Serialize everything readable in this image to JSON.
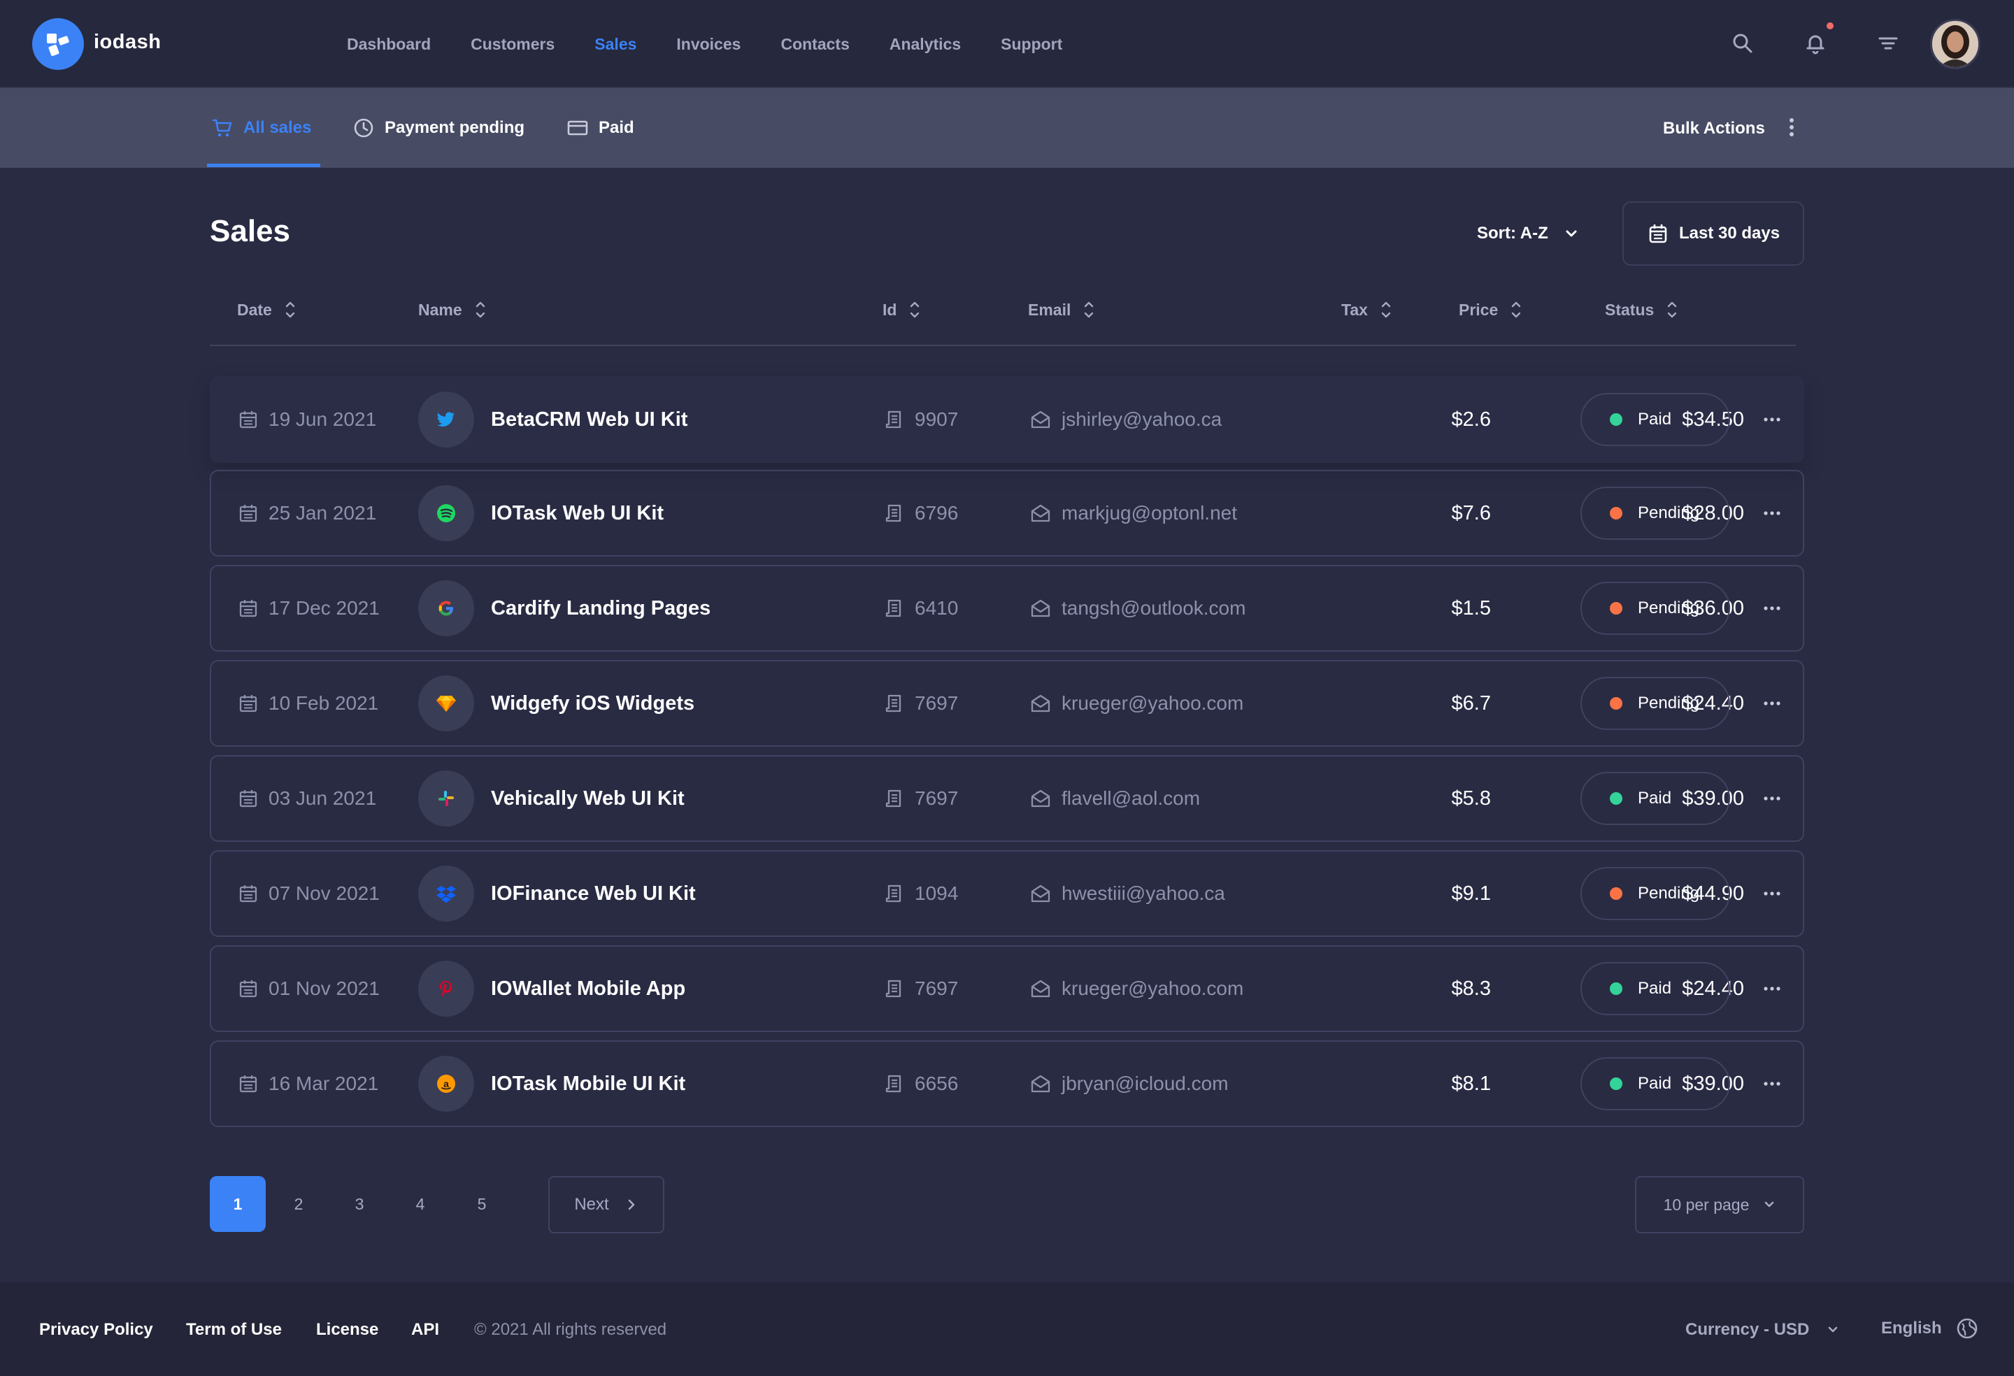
{
  "brand": {
    "name": "iodash"
  },
  "nav": {
    "items": [
      {
        "label": "Dashboard",
        "active": false
      },
      {
        "label": "Customers",
        "active": false
      },
      {
        "label": "Sales",
        "active": true
      },
      {
        "label": "Invoices",
        "active": false
      },
      {
        "label": "Contacts",
        "active": false
      },
      {
        "label": "Analytics",
        "active": false
      },
      {
        "label": "Support",
        "active": false
      }
    ],
    "icons": [
      "search-icon",
      "bell-icon",
      "filter-icon"
    ]
  },
  "subnav": {
    "tabs": [
      {
        "label": "All sales",
        "icon": "cart-icon",
        "active": true
      },
      {
        "label": "Payment pending",
        "icon": "clock-icon",
        "active": false
      },
      {
        "label": "Paid",
        "icon": "card-icon",
        "active": false
      }
    ],
    "bulk_actions": "Bulk Actions"
  },
  "page": {
    "title": "Sales",
    "sort_label": "Sort: A-Z",
    "date_range": "Last 30 days"
  },
  "table": {
    "columns": [
      "Date",
      "Name",
      "Id",
      "Email",
      "Tax",
      "Price",
      "Status"
    ],
    "rows": [
      {
        "date": "19 Jun 2021",
        "name": "BetaCRM Web UI Kit",
        "logo": "twitter-icon",
        "id": "9907",
        "email": "jshirley@yahoo.ca",
        "tax": "$2.6",
        "price": "$34.50",
        "status": "Paid"
      },
      {
        "date": "25 Jan 2021",
        "name": "IOTask Web UI Kit",
        "logo": "spotify-icon",
        "id": "6796",
        "email": "markjug@optonl.net",
        "tax": "$7.6",
        "price": "$28.00",
        "status": "Pending"
      },
      {
        "date": "17 Dec 2021",
        "name": "Cardify Landing Pages",
        "logo": "google-icon",
        "id": "6410",
        "email": "tangsh@outlook.com",
        "tax": "$1.5",
        "price": "$36.00",
        "status": "Pending"
      },
      {
        "date": "10 Feb 2021",
        "name": "Widgefy iOS Widgets",
        "logo": "sketch-icon",
        "id": "7697",
        "email": "krueger@yahoo.com",
        "tax": "$6.7",
        "price": "$24.40",
        "status": "Pending"
      },
      {
        "date": "03 Jun 2021",
        "name": "Vehically Web UI Kit",
        "logo": "slack-icon",
        "id": "7697",
        "email": "flavell@aol.com",
        "tax": "$5.8",
        "price": "$39.00",
        "status": "Paid"
      },
      {
        "date": "07 Nov 2021",
        "name": "IOFinance Web UI Kit",
        "logo": "dropbox-icon",
        "id": "1094",
        "email": "hwestiii@yahoo.ca",
        "tax": "$9.1",
        "price": "$44.90",
        "status": "Pending"
      },
      {
        "date": "01 Nov 2021",
        "name": "IOWallet Mobile App",
        "logo": "pinterest-icon",
        "id": "7697",
        "email": "krueger@yahoo.com",
        "tax": "$8.3",
        "price": "$24.40",
        "status": "Paid"
      },
      {
        "date": "16 Mar 2021",
        "name": "IOTask Mobile UI Kit",
        "logo": "amazon-icon",
        "id": "6656",
        "email": "jbryan@icloud.com",
        "tax": "$8.1",
        "price": "$39.00",
        "status": "Paid"
      }
    ]
  },
  "pagination": {
    "pages": [
      "1",
      "2",
      "3",
      "4",
      "5"
    ],
    "current": "1",
    "next_label": "Next",
    "per_page": "10 per page"
  },
  "footer": {
    "links": [
      "Privacy Policy",
      "Term of Use",
      "License",
      "API"
    ],
    "copyright": "© 2021 All rights reserved",
    "currency": "Currency - USD",
    "language": "English"
  },
  "colors": {
    "accent": "#3b82f6",
    "paid": "#34d399",
    "pending": "#f97346"
  }
}
